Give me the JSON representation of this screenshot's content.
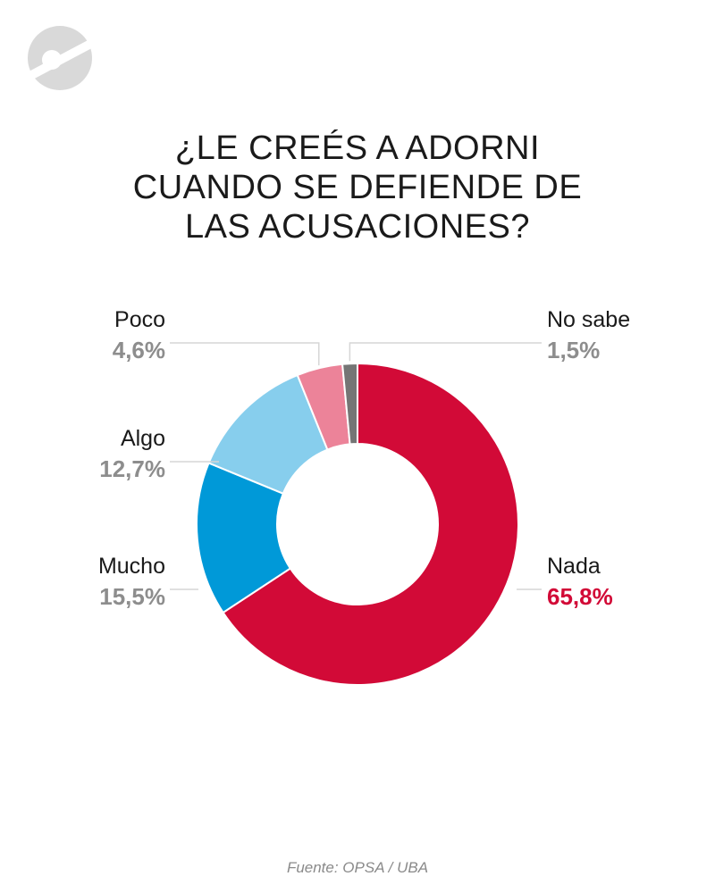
{
  "brand": {
    "logo_color": "#d9d9d9"
  },
  "title_lines": [
    "¿LE CREÉS A ADORNI",
    "CUANDO SE DEFIENDE DE",
    "LAS ACUSACIONES?"
  ],
  "source": "Fuente: OPSA / UBA",
  "chart_data": {
    "type": "pie",
    "style": "donut",
    "title": "¿LE CREÉS A ADORNI CUANDO SE DEFIENDE DE LAS ACUSACIONES?",
    "slices": [
      {
        "label": "Nada",
        "value": 65.8,
        "value_label": "65,8%",
        "color": "#d20a37",
        "highlight": true
      },
      {
        "label": "Mucho",
        "value": 15.5,
        "value_label": "15,5%",
        "color": "#0099d8",
        "highlight": false
      },
      {
        "label": "Algo",
        "value": 12.7,
        "value_label": "12,7%",
        "color": "#87ceed",
        "highlight": false
      },
      {
        "label": "Poco",
        "value": 4.6,
        "value_label": "4,6%",
        "color": "#ec8399",
        "highlight": false
      },
      {
        "label": "No sabe",
        "value": 1.5,
        "value_label": "1,5%",
        "color": "#757575",
        "highlight": false
      }
    ],
    "leader_line_color": "#d6d6d6",
    "source": "Fuente: OPSA / UBA"
  }
}
